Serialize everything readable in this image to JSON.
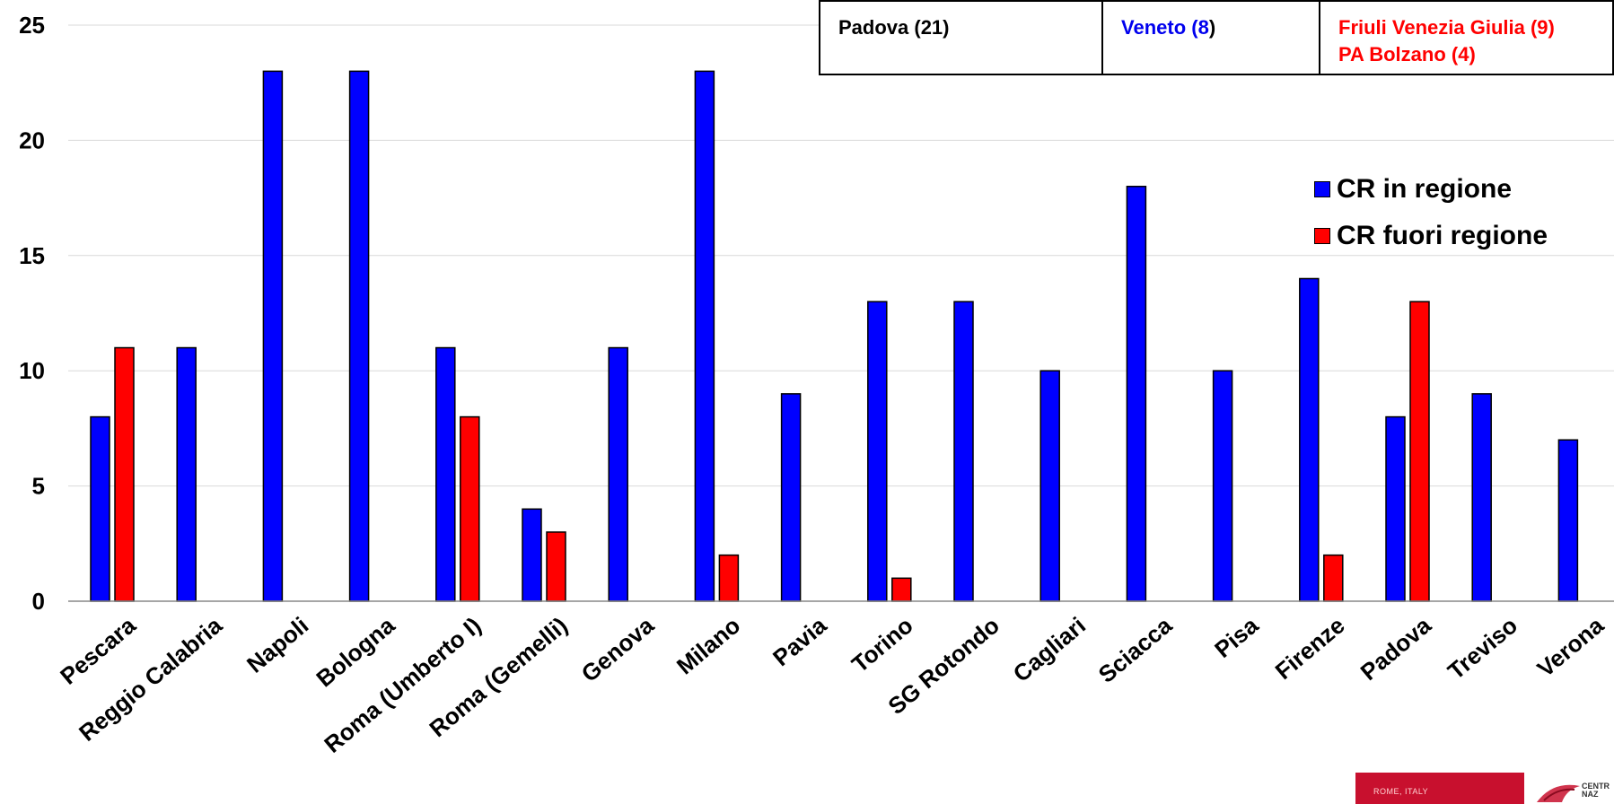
{
  "chart_data": {
    "type": "bar",
    "categories": [
      "Pescara",
      "Reggio Calabria",
      "Napoli",
      "Bologna",
      "Roma (Umberto I)",
      "Roma (Gemelli)",
      "Genova",
      "Milano",
      "Pavia",
      "Torino",
      "SG Rotondo",
      "Cagliari",
      "Sciacca",
      "Pisa",
      "Firenze",
      "Padova",
      "Treviso",
      "Verona"
    ],
    "series": [
      {
        "name": "CR in regione",
        "color": "#0000ff",
        "values": [
          8,
          11,
          23,
          23,
          11,
          4,
          11,
          23,
          9,
          13,
          13,
          10,
          18,
          10,
          14,
          8,
          9,
          7
        ]
      },
      {
        "name": "CR fuori regione",
        "color": "#ff0000",
        "values": [
          11,
          null,
          null,
          null,
          8,
          3,
          null,
          2,
          null,
          1,
          null,
          null,
          null,
          null,
          2,
          13,
          null,
          null
        ]
      }
    ],
    "ylim": [
      0,
      25
    ],
    "yticks": [
      0,
      5,
      10,
      15,
      20,
      25
    ],
    "grid": true,
    "legend_position": "right"
  },
  "info_table": {
    "cell1": "Padova (21)",
    "cell2_a": "Veneto (",
    "cell2_b": "8",
    "cell2_c": ")",
    "cell3_line1": "Friuli Venezia Giulia (9)",
    "cell3_line2": "PA Bolzano (4)"
  },
  "footer": {
    "logo_text": "ROME, ITALY",
    "logo2_line1": "CENTR",
    "logo2_line2": "NAZ"
  }
}
